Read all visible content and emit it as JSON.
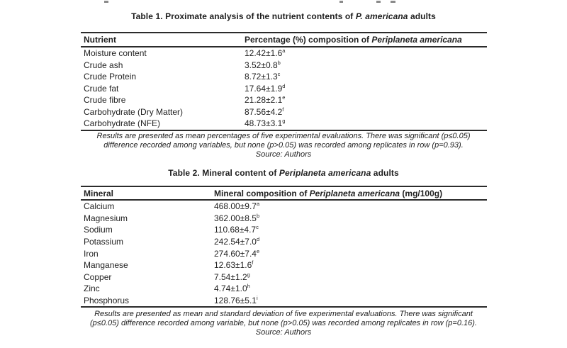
{
  "page": {
    "background": "#ffffff",
    "text_color": "#1f1f1f",
    "rule_color": "#2b2b2b"
  },
  "table1": {
    "title": {
      "prefix": "Table 1. Proximate analysis of the nutrient contents of ",
      "species": "P. americana",
      "suffix": " adults"
    },
    "header": {
      "col1": "Nutrient",
      "col2_prefix": "Percentage (%) composition of ",
      "col2_species": "Periplaneta americana",
      "col2_suffix": ""
    },
    "rows": [
      {
        "label": "Moisture content",
        "value": "12.42±1.6",
        "sup": "a"
      },
      {
        "label": "Crude ash",
        "value": "3.52±0.8",
        "sup": "b"
      },
      {
        "label": "Crude Protein",
        "value": "8.72±1.3",
        "sup": "c"
      },
      {
        "label": "Crude fat",
        "value": "17.64±1.9",
        "sup": "d"
      },
      {
        "label": "Crude fibre",
        "value": "21.28±2.1",
        "sup": "e"
      },
      {
        "label": "Carbohydrate (Dry Matter)",
        "value": "87.56±4.2",
        "sup": "f"
      },
      {
        "label": "Carbohydrate (NFE)",
        "value": "48.73±3.1",
        "sup": "g"
      }
    ],
    "footnote_lines": [
      "Results are presented as mean percentages of five experimental evaluations. There was significant (p≤0.05)",
      "difference recorded among variables, but none (p>0.05) was recorded among replicates in row (p=0.93).",
      "Source: Authors"
    ]
  },
  "table2": {
    "title": {
      "prefix": "Table 2. Mineral content of ",
      "species": "Periplaneta americana",
      "suffix": " adults"
    },
    "header": {
      "col1": "Mineral",
      "col2_prefix": "Mineral composition of ",
      "col2_species": "Periplaneta americana",
      "col2_suffix": " (mg/100g)"
    },
    "rows": [
      {
        "label": "Calcium",
        "value": "468.00±9.7",
        "sup": "a"
      },
      {
        "label": "Magnesium",
        "value": "362.00±8.5",
        "sup": "b"
      },
      {
        "label": "Sodium",
        "value": "110.68±4.7",
        "sup": "c"
      },
      {
        "label": "Potassium",
        "value": "242.54±7.0",
        "sup": "d"
      },
      {
        "label": "Iron",
        "value": "274.60±7.4",
        "sup": "e"
      },
      {
        "label": "Manganese",
        "value": "12.63±1.6",
        "sup": "f"
      },
      {
        "label": "Copper",
        "value": "7.54±1.2",
        "sup": "g"
      },
      {
        "label": "Zinc",
        "value": "4.74±1.0",
        "sup": "h"
      },
      {
        "label": "Phosphorus",
        "value": "128.76±5.1",
        "sup": "i"
      }
    ],
    "footnote_lines": [
      "Results are presented as mean and standard deviation of five experimental evaluations. There was significant",
      "(p≤0.05) difference recorded among variable, but none (p>0.05) was recorded among replicates in row (p=0.16).",
      "Source: Authors"
    ]
  }
}
